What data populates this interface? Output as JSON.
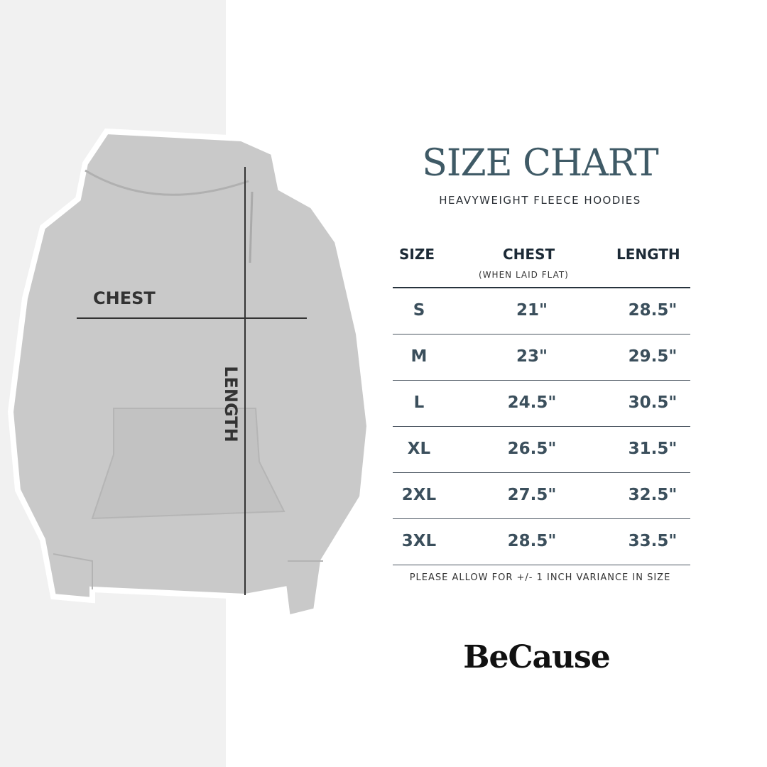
{
  "diagram": {
    "chest_label": "CHEST",
    "length_label": "LENGTH"
  },
  "header": {
    "title": "SIZE CHART",
    "subtitle": "HEAVYWEIGHT FLEECE HOODIES"
  },
  "table": {
    "columns": [
      {
        "label": "SIZE"
      },
      {
        "label": "CHEST",
        "sublabel": "(WHEN LAID FLAT)"
      },
      {
        "label": "LENGTH"
      }
    ],
    "rows": [
      [
        "S",
        "21\"",
        "28.5\""
      ],
      [
        "M",
        "23\"",
        "29.5\""
      ],
      [
        "L",
        "24.5\"",
        "30.5\""
      ],
      [
        "XL",
        "26.5\"",
        "31.5\""
      ],
      [
        "2XL",
        "27.5\"",
        "32.5\""
      ],
      [
        "3XL",
        "28.5\"",
        "33.5\""
      ]
    ]
  },
  "note": "PLEASE ALLOW FOR +/- 1 INCH VARIANCE IN SIZE",
  "brand": "BeCause",
  "colors": {
    "title": "#3f5a66",
    "header": "#1c2a36",
    "values": "#3b4f5c",
    "left_panel": "#f1f1f1",
    "hoodie": "#c9c9c9"
  }
}
